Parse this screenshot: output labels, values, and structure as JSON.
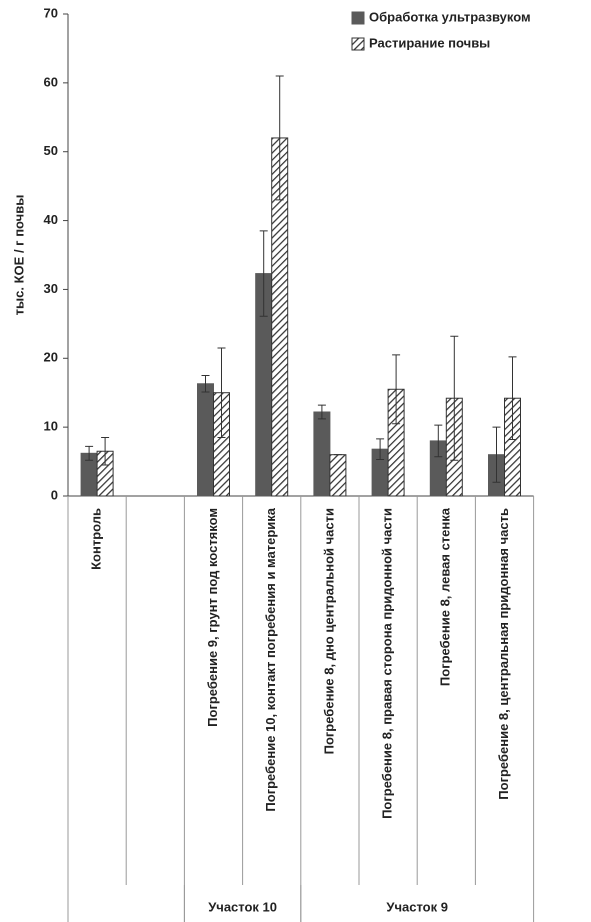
{
  "chart_data": {
    "type": "bar",
    "ylabel": "тыс. КОЕ / г почвы",
    "categories": [
      "Контроль",
      null,
      "Погребение 9, грунт под костяком",
      "Погребение 10, контакт погребения и материка",
      "Погребение 8, дно центральной части",
      "Погребение 8, правая сторона придонной части",
      "Погребение 8, левая стенка",
      "Погребение 8, центральная придонная часть"
    ],
    "category_groups": [
      null,
      null,
      "Участок 10",
      "Участок 10",
      "Участок 9",
      "Участок 9",
      "Участок 9",
      "Участок 9"
    ],
    "series": [
      {
        "name": "Обработка ультразвуком",
        "color": "#5a5a5a",
        "pattern": "solid",
        "values": [
          6.2,
          null,
          16.3,
          32.3,
          12.2,
          6.8,
          8.0,
          6.0
        ],
        "errors": [
          1.0,
          null,
          1.2,
          6.2,
          1.0,
          1.5,
          2.3,
          4.0
        ]
      },
      {
        "name": "Растирание почвы",
        "color": "#333333",
        "pattern": "hatch",
        "values": [
          6.5,
          null,
          15.0,
          52,
          6.0,
          15.5,
          14.2,
          14.2
        ],
        "errors": [
          2.0,
          null,
          6.5,
          9.0,
          0,
          5.0,
          9.0,
          6.0
        ]
      }
    ],
    "ylim": [
      0,
      70
    ],
    "yticks": [
      0,
      10,
      20,
      30,
      40,
      50,
      60,
      70
    ],
    "legend": "top-right"
  }
}
